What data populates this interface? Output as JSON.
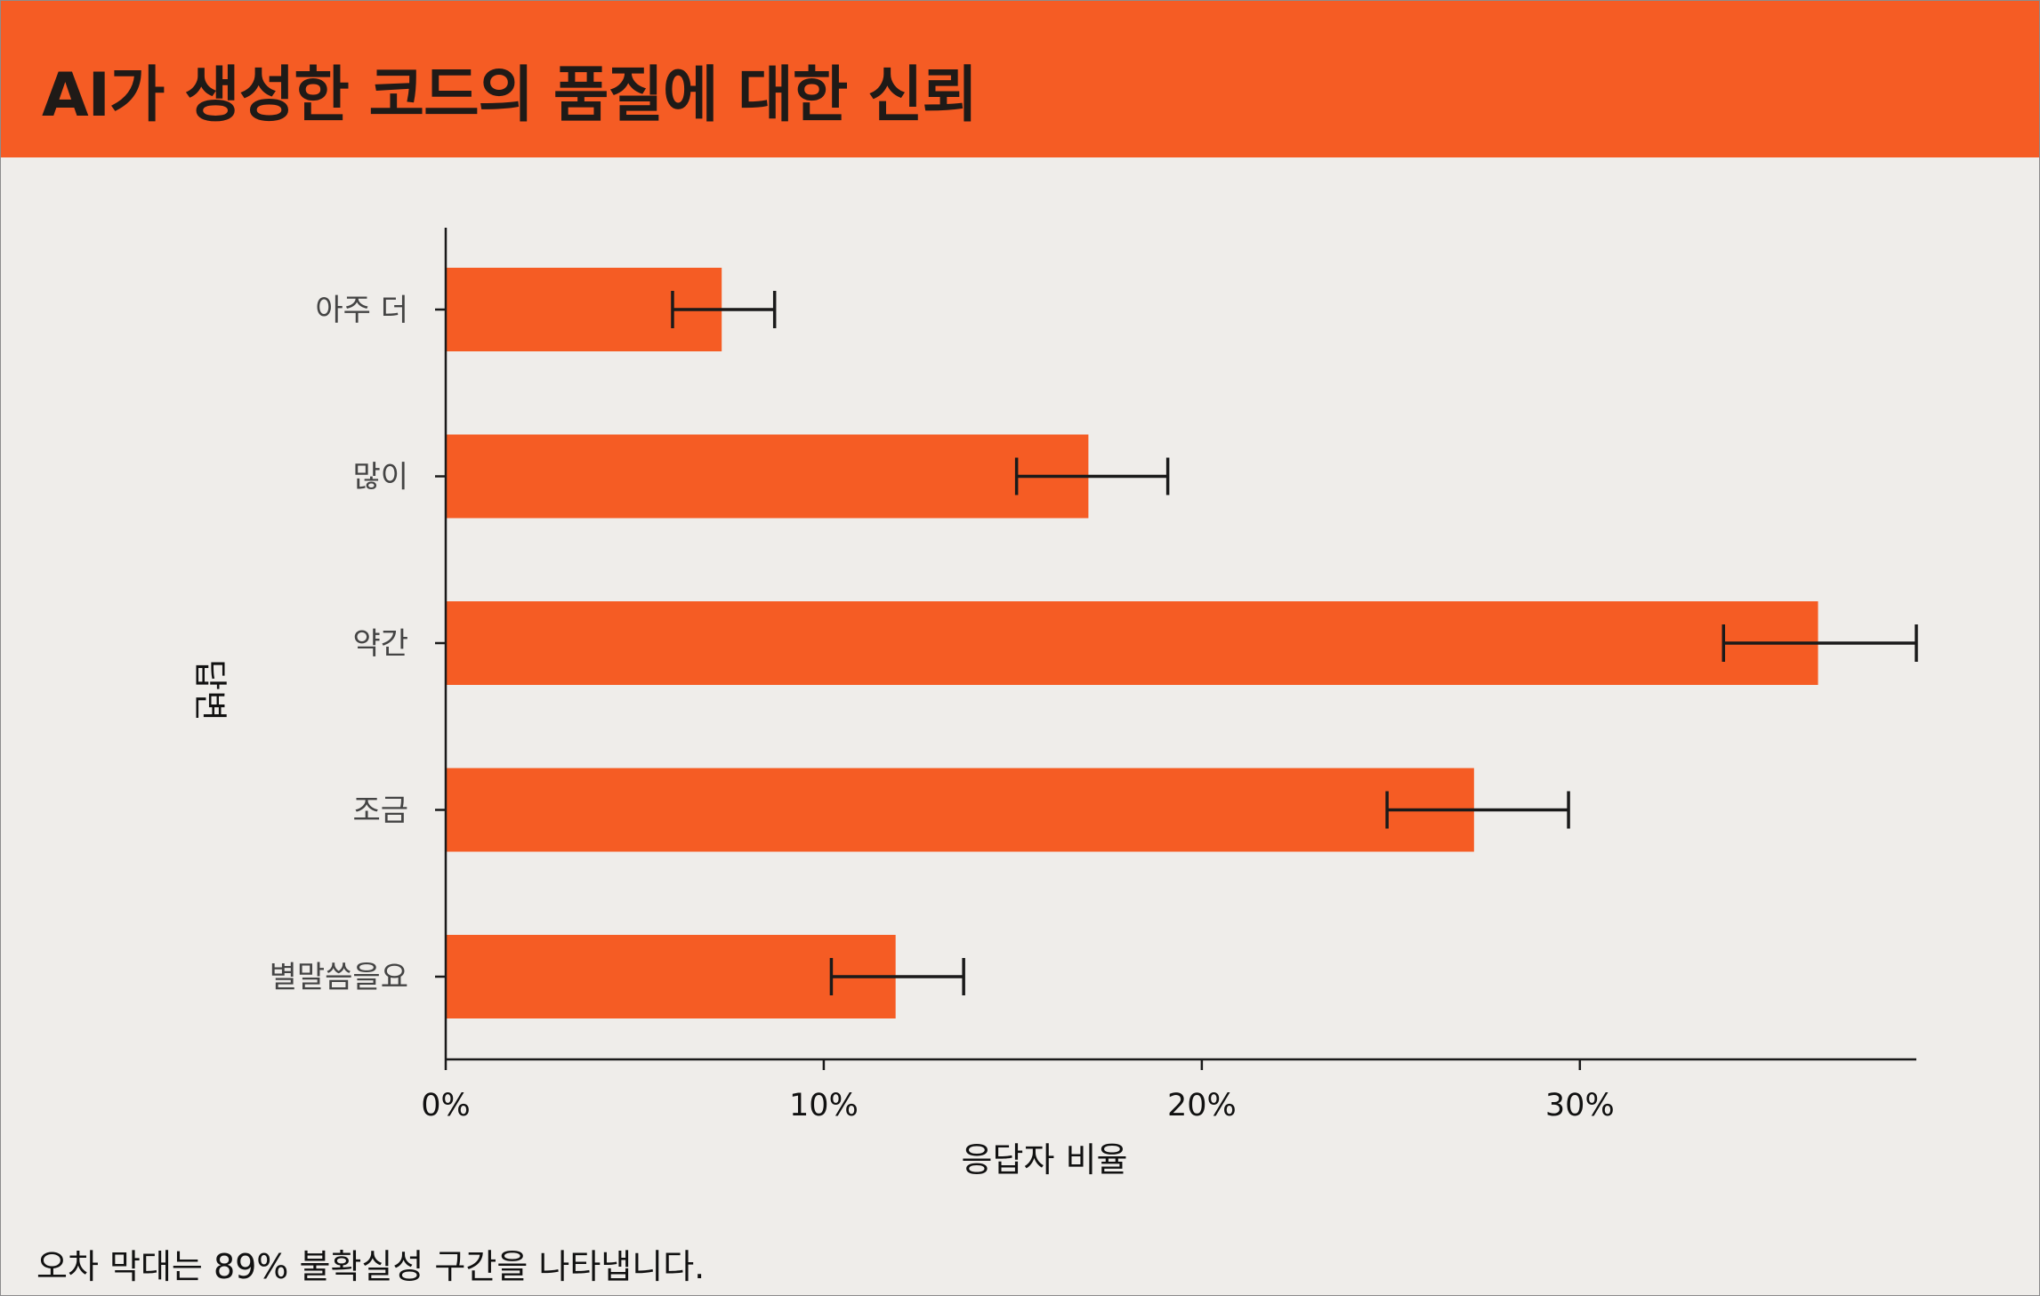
{
  "chart_data": {
    "type": "bar",
    "orientation": "horizontal",
    "title": "AI가 생성한 코드의 품질에 대한 신뢰",
    "xlabel": "응답자 비율",
    "ylabel": "답변",
    "categories": [
      "아주 더",
      "많이",
      "약간",
      "조금",
      "별말씀을요"
    ],
    "values": [
      7.3,
      17.0,
      36.3,
      27.2,
      11.9
    ],
    "error_low": [
      6.0,
      15.1,
      33.8,
      24.9,
      10.2
    ],
    "error_high": [
      8.7,
      19.1,
      38.9,
      29.7,
      13.7
    ],
    "xlim": [
      0,
      38.9
    ],
    "xticks": [
      0,
      10,
      20,
      30
    ],
    "xtick_labels": [
      "0%",
      "10%",
      "20%",
      "30%"
    ],
    "grid": false,
    "bar_color": "#f55c24",
    "error_bar_color": "#1a1a1a",
    "footnote": "오차 막대는 89% 불확실성 구간을 나타냅니다."
  }
}
